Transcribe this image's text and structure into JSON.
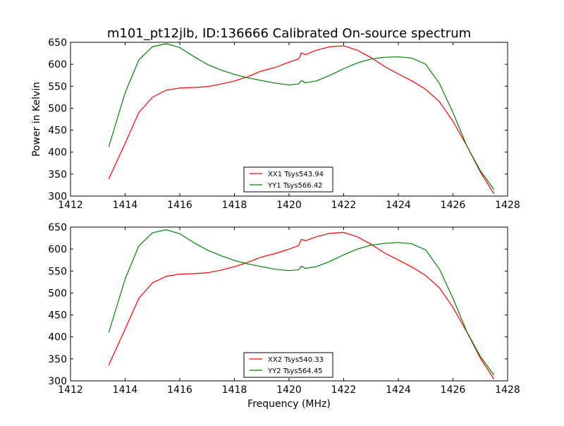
{
  "chart_data": {
    "title": "m101_pt12jlb, ID:136666 Calibrated On-source spectrum",
    "xlabel": "Frequency (MHz)",
    "ylabel": "Power in Kelvin",
    "colors": {
      "XX": "#ff0000",
      "YY": "#008000"
    },
    "charts": [
      {
        "type": "line",
        "xlim": [
          1412,
          1428
        ],
        "ylim": [
          300,
          650
        ],
        "xticks": [
          1412,
          1414,
          1416,
          1418,
          1420,
          1422,
          1424,
          1426,
          1428
        ],
        "yticks": [
          300,
          350,
          400,
          450,
          500,
          550,
          600,
          650
        ],
        "series": [
          {
            "name": "XX1 Tsys543.94",
            "color": "#ff0000",
            "x": [
              1413.4,
              1414.0,
              1414.5,
              1415.0,
              1415.5,
              1416.0,
              1416.5,
              1417.0,
              1417.5,
              1418.0,
              1418.5,
              1419.0,
              1419.5,
              1420.0,
              1420.35,
              1420.45,
              1420.6,
              1421.0,
              1421.5,
              1422.0,
              1422.5,
              1423.0,
              1423.5,
              1424.0,
              1424.5,
              1425.0,
              1425.5,
              1426.0,
              1426.5,
              1427.0,
              1427.5
            ],
            "y": [
              339,
              420,
              490,
              525,
              541,
              546,
              547,
              549,
              555,
              562,
              572,
              585,
              593,
              605,
              612,
              626,
              622,
              632,
              640,
              642,
              632,
              615,
              595,
              578,
              562,
              543,
              515,
              470,
              415,
              355,
              305
            ]
          },
          {
            "name": "YY1 Tsys566.42",
            "color": "#008000",
            "x": [
              1413.4,
              1414.0,
              1414.5,
              1415.0,
              1415.5,
              1416.0,
              1416.5,
              1417.0,
              1417.5,
              1418.0,
              1418.5,
              1419.0,
              1419.5,
              1420.0,
              1420.35,
              1420.45,
              1420.6,
              1421.0,
              1421.5,
              1422.0,
              1422.5,
              1423.0,
              1423.5,
              1424.0,
              1424.5,
              1425.0,
              1425.5,
              1426.0,
              1426.5,
              1427.0,
              1427.5
            ],
            "y": [
              412,
              535,
              610,
              640,
              647,
              638,
              618,
              600,
              587,
              577,
              569,
              563,
              557,
              553,
              555,
              563,
              558,
              562,
              575,
              590,
              603,
              612,
              616,
              617,
              614,
              600,
              557,
              490,
              415,
              358,
              315
            ]
          }
        ]
      },
      {
        "type": "line",
        "xlim": [
          1412,
          1428
        ],
        "ylim": [
          300,
          650
        ],
        "xticks": [
          1412,
          1414,
          1416,
          1418,
          1420,
          1422,
          1424,
          1426,
          1428
        ],
        "yticks": [
          300,
          350,
          400,
          450,
          500,
          550,
          600,
          650
        ],
        "series": [
          {
            "name": "XX2 Tsys540.33",
            "color": "#ff0000",
            "x": [
              1413.4,
              1414.0,
              1414.5,
              1415.0,
              1415.5,
              1416.0,
              1416.5,
              1417.0,
              1417.5,
              1418.0,
              1418.5,
              1419.0,
              1419.5,
              1420.0,
              1420.35,
              1420.45,
              1420.6,
              1421.0,
              1421.5,
              1422.0,
              1422.5,
              1423.0,
              1423.5,
              1424.0,
              1424.5,
              1425.0,
              1425.5,
              1426.0,
              1426.5,
              1427.0,
              1427.5
            ],
            "y": [
              336,
              418,
              488,
              523,
              538,
              543,
              544,
              546,
              552,
              560,
              570,
              582,
              590,
              600,
              608,
              622,
              619,
              628,
              636,
              638,
              628,
              611,
              591,
              575,
              559,
              540,
              512,
              467,
              412,
              352,
              304
            ]
          },
          {
            "name": "YY2 Tsys564.45",
            "color": "#008000",
            "x": [
              1413.4,
              1414.0,
              1414.5,
              1415.0,
              1415.5,
              1416.0,
              1416.5,
              1417.0,
              1417.5,
              1418.0,
              1418.5,
              1419.0,
              1419.5,
              1420.0,
              1420.35,
              1420.45,
              1420.6,
              1421.0,
              1421.5,
              1422.0,
              1422.5,
              1423.0,
              1423.5,
              1424.0,
              1424.5,
              1425.0,
              1425.5,
              1426.0,
              1426.5,
              1427.0,
              1427.5
            ],
            "y": [
              410,
              532,
              607,
              637,
              644,
              635,
              615,
              598,
              585,
              574,
              566,
              560,
              554,
              551,
              553,
              561,
              556,
              560,
              572,
              587,
              600,
              609,
              613,
              615,
              612,
              598,
              555,
              488,
              413,
              356,
              313
            ]
          }
        ]
      }
    ]
  }
}
